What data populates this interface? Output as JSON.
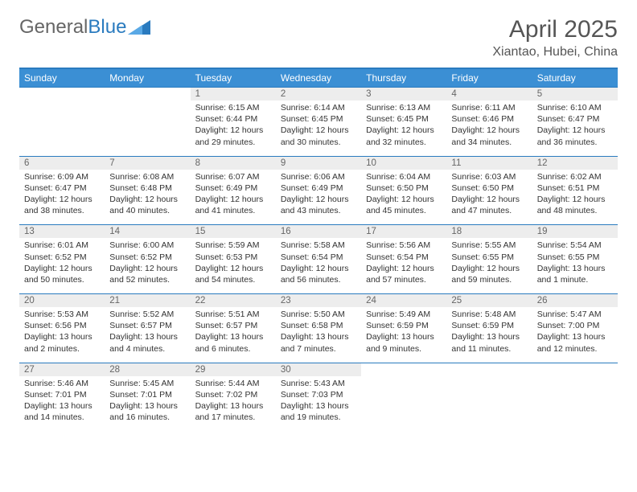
{
  "brand": {
    "word1": "General",
    "word2": "Blue"
  },
  "title": "April 2025",
  "location": "Xiantao, Hubei, China",
  "weekdays": [
    "Sunday",
    "Monday",
    "Tuesday",
    "Wednesday",
    "Thursday",
    "Friday",
    "Saturday"
  ],
  "colors": {
    "header_bg": "#3b8fd4",
    "header_border": "#2a7bbf",
    "daynum_bg": "#ededed",
    "text": "#333333",
    "subtext": "#666666",
    "page_bg": "#ffffff"
  },
  "typography": {
    "title_fontsize_pt": 23,
    "location_fontsize_pt": 12,
    "weekday_fontsize_pt": 9,
    "daynum_fontsize_pt": 9,
    "detail_fontsize_pt": 8,
    "font_family": "Arial"
  },
  "calendar": {
    "lead_blanks": 2,
    "days": [
      {
        "n": 1,
        "sunrise": "6:15 AM",
        "sunset": "6:44 PM",
        "daylight": "12 hours and 29 minutes."
      },
      {
        "n": 2,
        "sunrise": "6:14 AM",
        "sunset": "6:45 PM",
        "daylight": "12 hours and 30 minutes."
      },
      {
        "n": 3,
        "sunrise": "6:13 AM",
        "sunset": "6:45 PM",
        "daylight": "12 hours and 32 minutes."
      },
      {
        "n": 4,
        "sunrise": "6:11 AM",
        "sunset": "6:46 PM",
        "daylight": "12 hours and 34 minutes."
      },
      {
        "n": 5,
        "sunrise": "6:10 AM",
        "sunset": "6:47 PM",
        "daylight": "12 hours and 36 minutes."
      },
      {
        "n": 6,
        "sunrise": "6:09 AM",
        "sunset": "6:47 PM",
        "daylight": "12 hours and 38 minutes."
      },
      {
        "n": 7,
        "sunrise": "6:08 AM",
        "sunset": "6:48 PM",
        "daylight": "12 hours and 40 minutes."
      },
      {
        "n": 8,
        "sunrise": "6:07 AM",
        "sunset": "6:49 PM",
        "daylight": "12 hours and 41 minutes."
      },
      {
        "n": 9,
        "sunrise": "6:06 AM",
        "sunset": "6:49 PM",
        "daylight": "12 hours and 43 minutes."
      },
      {
        "n": 10,
        "sunrise": "6:04 AM",
        "sunset": "6:50 PM",
        "daylight": "12 hours and 45 minutes."
      },
      {
        "n": 11,
        "sunrise": "6:03 AM",
        "sunset": "6:50 PM",
        "daylight": "12 hours and 47 minutes."
      },
      {
        "n": 12,
        "sunrise": "6:02 AM",
        "sunset": "6:51 PM",
        "daylight": "12 hours and 48 minutes."
      },
      {
        "n": 13,
        "sunrise": "6:01 AM",
        "sunset": "6:52 PM",
        "daylight": "12 hours and 50 minutes."
      },
      {
        "n": 14,
        "sunrise": "6:00 AM",
        "sunset": "6:52 PM",
        "daylight": "12 hours and 52 minutes."
      },
      {
        "n": 15,
        "sunrise": "5:59 AM",
        "sunset": "6:53 PM",
        "daylight": "12 hours and 54 minutes."
      },
      {
        "n": 16,
        "sunrise": "5:58 AM",
        "sunset": "6:54 PM",
        "daylight": "12 hours and 56 minutes."
      },
      {
        "n": 17,
        "sunrise": "5:56 AM",
        "sunset": "6:54 PM",
        "daylight": "12 hours and 57 minutes."
      },
      {
        "n": 18,
        "sunrise": "5:55 AM",
        "sunset": "6:55 PM",
        "daylight": "12 hours and 59 minutes."
      },
      {
        "n": 19,
        "sunrise": "5:54 AM",
        "sunset": "6:55 PM",
        "daylight": "13 hours and 1 minute."
      },
      {
        "n": 20,
        "sunrise": "5:53 AM",
        "sunset": "6:56 PM",
        "daylight": "13 hours and 2 minutes."
      },
      {
        "n": 21,
        "sunrise": "5:52 AM",
        "sunset": "6:57 PM",
        "daylight": "13 hours and 4 minutes."
      },
      {
        "n": 22,
        "sunrise": "5:51 AM",
        "sunset": "6:57 PM",
        "daylight": "13 hours and 6 minutes."
      },
      {
        "n": 23,
        "sunrise": "5:50 AM",
        "sunset": "6:58 PM",
        "daylight": "13 hours and 7 minutes."
      },
      {
        "n": 24,
        "sunrise": "5:49 AM",
        "sunset": "6:59 PM",
        "daylight": "13 hours and 9 minutes."
      },
      {
        "n": 25,
        "sunrise": "5:48 AM",
        "sunset": "6:59 PM",
        "daylight": "13 hours and 11 minutes."
      },
      {
        "n": 26,
        "sunrise": "5:47 AM",
        "sunset": "7:00 PM",
        "daylight": "13 hours and 12 minutes."
      },
      {
        "n": 27,
        "sunrise": "5:46 AM",
        "sunset": "7:01 PM",
        "daylight": "13 hours and 14 minutes."
      },
      {
        "n": 28,
        "sunrise": "5:45 AM",
        "sunset": "7:01 PM",
        "daylight": "13 hours and 16 minutes."
      },
      {
        "n": 29,
        "sunrise": "5:44 AM",
        "sunset": "7:02 PM",
        "daylight": "13 hours and 17 minutes."
      },
      {
        "n": 30,
        "sunrise": "5:43 AM",
        "sunset": "7:03 PM",
        "daylight": "13 hours and 19 minutes."
      }
    ]
  },
  "labels": {
    "sunrise": "Sunrise: ",
    "sunset": "Sunset: ",
    "daylight": "Daylight: "
  }
}
